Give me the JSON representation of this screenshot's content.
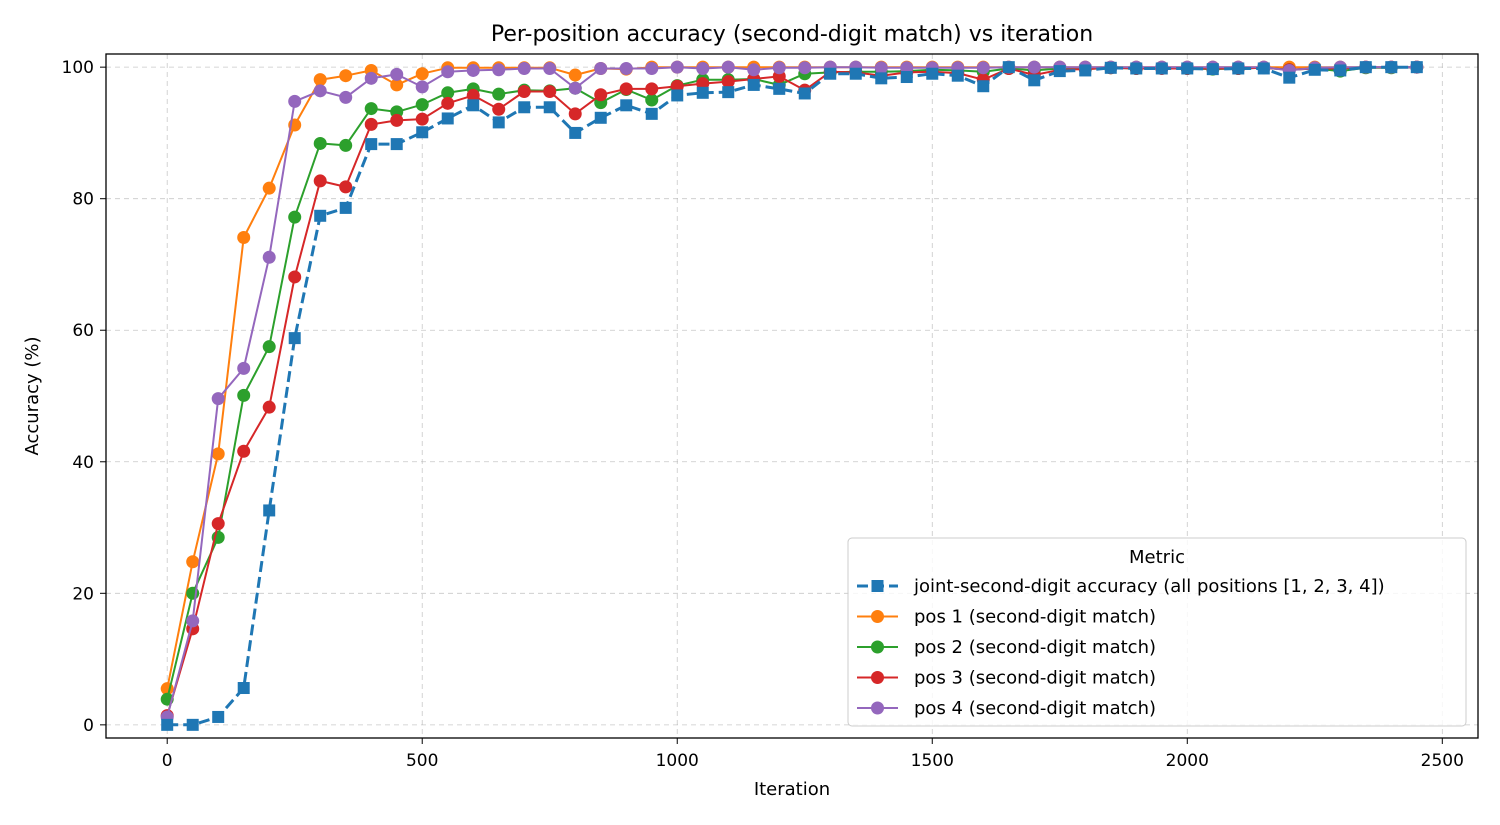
{
  "chart_data": {
    "type": "line",
    "title": "Per-position accuracy (second-digit match) vs iteration",
    "xlabel": "Iteration",
    "ylabel": "Accuracy (%)",
    "xlim": [
      -120,
      2570
    ],
    "ylim": [
      -2,
      102
    ],
    "xticks": [
      0,
      500,
      1000,
      1500,
      2000,
      2500
    ],
    "yticks": [
      0,
      20,
      40,
      60,
      80,
      100
    ],
    "grid": true,
    "legend": {
      "title": "Metric",
      "position": "bottom-right"
    },
    "x": [
      0,
      50,
      100,
      150,
      200,
      250,
      300,
      350,
      400,
      450,
      500,
      550,
      600,
      650,
      700,
      750,
      800,
      850,
      900,
      950,
      1000,
      1050,
      1100,
      1150,
      1200,
      1250,
      1300,
      1350,
      1400,
      1450,
      1500,
      1550,
      1600,
      1650,
      1700,
      1750,
      1800,
      1850,
      1900,
      1950,
      2000,
      2050,
      2100,
      2150,
      2200,
      2250,
      2300,
      2350,
      2400,
      2450
    ],
    "series": [
      {
        "name": "joint-second-digit accuracy (all positions [1, 2, 3, 4])",
        "color": "#1f77b4",
        "marker": "square",
        "dashed": true,
        "values": [
          0.0,
          0.0,
          1.2,
          5.6,
          32.6,
          58.8,
          77.4,
          78.6,
          88.3,
          88.3,
          90.1,
          92.2,
          94.2,
          91.6,
          93.9,
          93.9,
          90.0,
          92.3,
          94.2,
          92.9,
          95.7,
          96.1,
          96.2,
          97.3,
          96.7,
          96.0,
          99.0,
          99.0,
          98.3,
          98.5,
          99.0,
          98.7,
          97.1,
          100.0,
          98.0,
          99.4,
          99.5,
          99.9,
          99.8,
          99.8,
          99.8,
          99.7,
          99.8,
          99.8,
          98.4,
          99.6,
          99.5,
          100.0,
          100.0,
          100.0
        ]
      },
      {
        "name": "pos 1 (second-digit match)",
        "color": "#ff7f0e",
        "marker": "circle",
        "dashed": false,
        "values": [
          5.5,
          24.8,
          41.2,
          74.1,
          81.6,
          91.2,
          98.1,
          98.7,
          99.5,
          97.3,
          99.0,
          99.9,
          99.9,
          99.9,
          99.9,
          99.9,
          98.8,
          99.8,
          99.7,
          100.0,
          100.0,
          100.0,
          100.0,
          100.0,
          100.0,
          100.0,
          100.0,
          100.0,
          100.0,
          100.0,
          100.0,
          100.0,
          100.0,
          100.0,
          100.0,
          100.0,
          100.0,
          100.0,
          100.0,
          100.0,
          100.0,
          100.0,
          100.0,
          100.0,
          100.0,
          100.0,
          100.0,
          100.0,
          100.0,
          100.0
        ]
      },
      {
        "name": "pos 2 (second-digit match)",
        "color": "#2ca02c",
        "marker": "circle",
        "dashed": false,
        "values": [
          3.9,
          20.0,
          28.5,
          50.1,
          57.5,
          77.2,
          88.4,
          88.1,
          93.7,
          93.2,
          94.3,
          96.1,
          96.7,
          95.9,
          96.5,
          96.4,
          96.8,
          94.6,
          96.6,
          95.0,
          97.2,
          98.1,
          98.1,
          98.2,
          97.3,
          99.0,
          99.2,
          99.3,
          99.3,
          99.4,
          99.6,
          99.5,
          99.3,
          99.8,
          99.5,
          99.8,
          99.7,
          99.9,
          99.8,
          99.9,
          99.8,
          99.7,
          99.8,
          99.9,
          99.6,
          99.8,
          99.4,
          99.9,
          99.9,
          100.0
        ]
      },
      {
        "name": "pos 3 (second-digit match)",
        "color": "#d62728",
        "marker": "circle",
        "dashed": false,
        "values": [
          1.4,
          14.6,
          30.6,
          41.6,
          48.3,
          68.1,
          82.7,
          81.8,
          91.3,
          91.9,
          92.1,
          94.5,
          95.7,
          93.6,
          96.3,
          96.3,
          92.9,
          95.8,
          96.7,
          96.7,
          97.1,
          97.5,
          97.8,
          98.2,
          98.6,
          96.5,
          99.3,
          99.2,
          98.7,
          99.2,
          99.3,
          99.1,
          98.1,
          99.8,
          98.8,
          99.6,
          99.7,
          99.9,
          99.8,
          99.8,
          99.8,
          99.8,
          99.8,
          99.9,
          99.6,
          99.8,
          99.8,
          100.0,
          100.0,
          100.0
        ]
      },
      {
        "name": "pos 4 (second-digit match)",
        "color": "#9467bd",
        "marker": "circle",
        "dashed": false,
        "values": [
          1.2,
          15.8,
          49.6,
          54.2,
          71.1,
          94.8,
          96.4,
          95.4,
          98.3,
          98.9,
          97.0,
          99.3,
          99.5,
          99.6,
          99.8,
          99.8,
          96.8,
          99.8,
          99.8,
          99.8,
          100.0,
          99.8,
          100.0,
          99.6,
          99.9,
          99.9,
          100.0,
          100.0,
          99.9,
          99.9,
          99.9,
          99.9,
          99.9,
          100.0,
          100.0,
          100.0,
          100.0,
          100.0,
          100.0,
          100.0,
          100.0,
          100.0,
          100.0,
          100.0,
          99.5,
          99.9,
          100.0,
          100.0,
          100.0,
          100.0
        ]
      }
    ]
  }
}
